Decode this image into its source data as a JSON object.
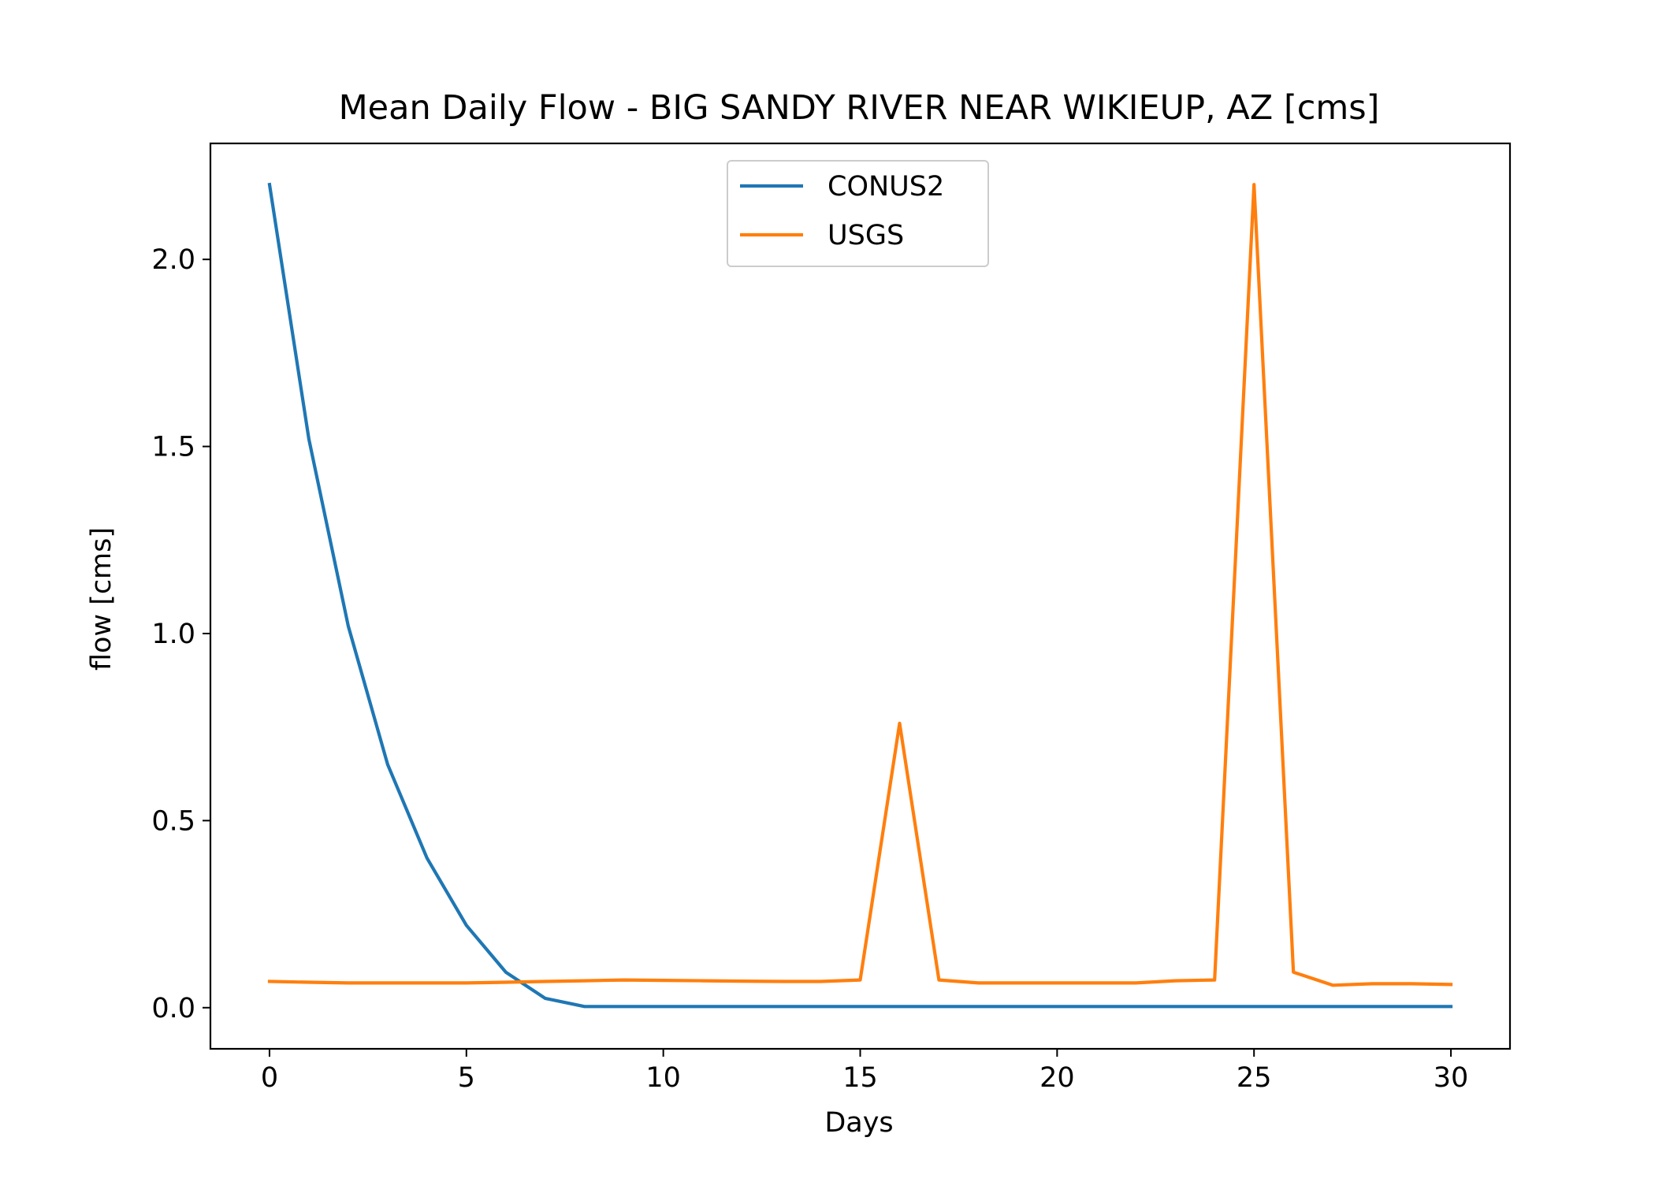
{
  "chart_data": {
    "type": "line",
    "title": "Mean Daily Flow - BIG SANDY RIVER NEAR WIKIEUP, AZ [cms]",
    "xlabel": "Days",
    "ylabel": "flow [cms]",
    "xlim": [
      -1.5,
      31.5
    ],
    "ylim": [
      -0.11,
      2.31
    ],
    "xticks": [
      0,
      5,
      10,
      15,
      20,
      25,
      30
    ],
    "xtick_labels": [
      "0",
      "5",
      "10",
      "15",
      "20",
      "25",
      "30"
    ],
    "yticks": [
      0.0,
      0.5,
      1.0,
      1.5,
      2.0
    ],
    "ytick_labels": [
      "0.0",
      "0.5",
      "1.0",
      "1.5",
      "2.0"
    ],
    "grid": false,
    "legend_position": "upper center",
    "x": [
      0,
      1,
      2,
      3,
      4,
      5,
      6,
      7,
      8,
      9,
      10,
      11,
      12,
      13,
      14,
      15,
      16,
      17,
      18,
      19,
      20,
      21,
      22,
      23,
      24,
      25,
      26,
      27,
      28,
      29,
      30
    ],
    "series": [
      {
        "name": "CONUS2",
        "color": "#1f77b4",
        "values": [
          2.2,
          1.52,
          1.02,
          0.65,
          0.4,
          0.22,
          0.095,
          0.025,
          0.003,
          0.003,
          0.003,
          0.003,
          0.003,
          0.003,
          0.003,
          0.003,
          0.003,
          0.003,
          0.003,
          0.003,
          0.003,
          0.003,
          0.003,
          0.003,
          0.003,
          0.003,
          0.003,
          0.003,
          0.003,
          0.003,
          0.003
        ]
      },
      {
        "name": "USGS",
        "color": "#ff7f0e",
        "values": [
          0.07,
          0.068,
          0.066,
          0.066,
          0.066,
          0.066,
          0.068,
          0.07,
          0.072,
          0.074,
          0.073,
          0.072,
          0.071,
          0.07,
          0.07,
          0.074,
          0.76,
          0.074,
          0.066,
          0.066,
          0.066,
          0.066,
          0.066,
          0.072,
          0.074,
          2.2,
          0.095,
          0.06,
          0.064,
          0.064,
          0.062
        ]
      }
    ]
  }
}
